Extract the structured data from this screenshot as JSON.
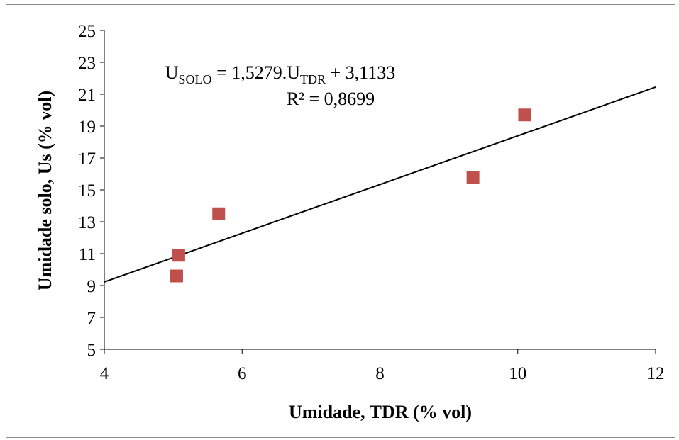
{
  "chart_data": {
    "type": "scatter",
    "xlabel": "Umidade, TDR (% vol)",
    "ylabel": "Umidade solo, Us (% vol)",
    "xlim": [
      4,
      12
    ],
    "ylim": [
      5,
      25
    ],
    "xticks": [
      4,
      6,
      8,
      10,
      12
    ],
    "yticks": [
      5,
      7,
      9,
      11,
      13,
      15,
      17,
      19,
      21,
      23,
      25
    ],
    "grid": false,
    "marker_color": "#C0504D",
    "line_color": "#000000",
    "points": [
      {
        "x": 5.05,
        "y": 9.6
      },
      {
        "x": 5.08,
        "y": 10.9
      },
      {
        "x": 5.66,
        "y": 13.5
      },
      {
        "x": 9.35,
        "y": 15.8
      },
      {
        "x": 10.1,
        "y": 19.7
      }
    ],
    "trendline": {
      "slope": 1.5279,
      "intercept": 3.1133,
      "x_start": 4,
      "x_end": 12
    },
    "equation": {
      "lhs_main": "U",
      "lhs_sub": "SOLO",
      "mid": " = 1,5279.U",
      "mid_sub": "TDR",
      "rhs": " + 3,1133",
      "r2": "R² = 0,8699"
    }
  }
}
